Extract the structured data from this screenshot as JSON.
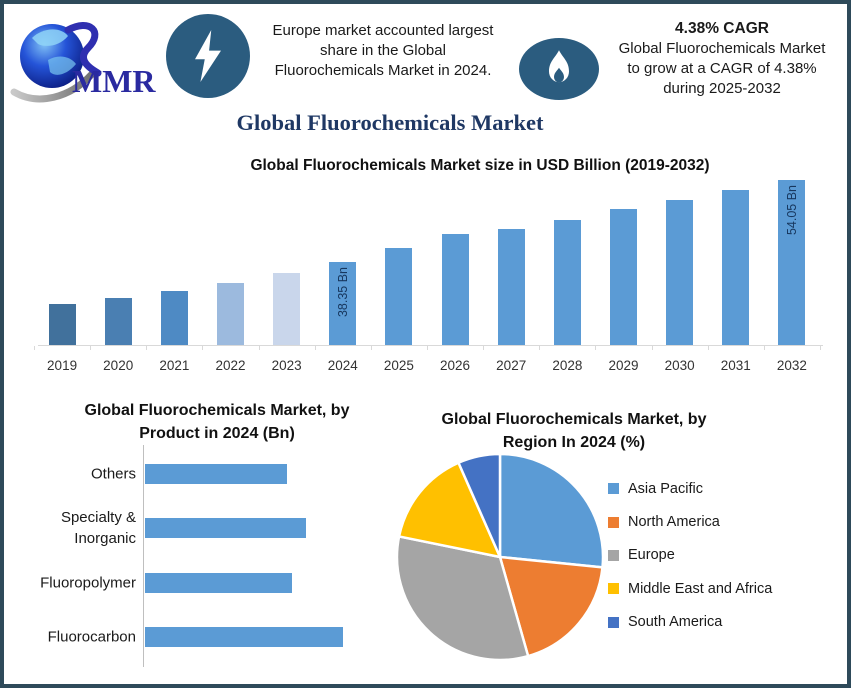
{
  "theme": {
    "frame_border": "#2E4A5A",
    "badge_blue": "#2B5C7F",
    "title_navy": "#1F3864",
    "logo_blue": "#2A2AA0",
    "bar_accent": "#5B9BD5",
    "bar_label_navy": "#17375E"
  },
  "header": {
    "logo": {
      "text": "MMR",
      "icon": "globe-icon"
    },
    "callout_europe": {
      "icon": "lightning-icon",
      "lines": [
        "Europe market accounted largest",
        "share in the Global",
        "Fluorochemicals Market in 2024."
      ]
    },
    "callout_cagr": {
      "icon": "flame-icon",
      "heading": "4.38% CAGR",
      "lines": [
        "Global Fluorochemicals Market",
        "to grow at a CAGR of 4.38%",
        "during 2025-2032"
      ]
    }
  },
  "page_title": "Global Fluorochemicals Market",
  "chart_data": [
    {
      "type": "bar",
      "title": "Global Fluorochemicals Market size in USD Billion (2019-2032)",
      "unit": "USD Billion",
      "categories": [
        "2019",
        "2020",
        "2021",
        "2022",
        "2023",
        "2024",
        "2025",
        "2026",
        "2027",
        "2028",
        "2029",
        "2030",
        "2031",
        "2032"
      ],
      "values": [
        30.2,
        31.4,
        32.7,
        34.3,
        36.2,
        38.35,
        40.9,
        43.6,
        44.6,
        46.4,
        48.4,
        50.3,
        52.1,
        54.05
      ],
      "data_labels": {
        "2024": "38.35 Bn",
        "2032": "54.05 Bn"
      },
      "bar_colors": [
        "#41719C",
        "#4A7FB2",
        "#4E8AC4",
        "#9CBADE",
        "#C9D6EB",
        "#5B9BD5",
        "#5B9BD5",
        "#5B9BD5",
        "#5B9BD5",
        "#5B9BD5",
        "#5B9BD5",
        "#5B9BD5",
        "#5B9BD5",
        "#5B9BD5"
      ],
      "ylim": [
        22.3,
        56.0
      ],
      "grid": false,
      "xlabel": "",
      "ylabel": ""
    },
    {
      "type": "bar",
      "orientation": "horizontal",
      "title_lines": [
        "Global Fluorochemicals Market, by",
        "Product in 2024 (Bn)"
      ],
      "categories": [
        "Others",
        "Specialty & Inorganic",
        "Fluoropolymer",
        "Fluorocarbon"
      ],
      "values": [
        8.4,
        9.5,
        8.7,
        11.7
      ],
      "bar_color": "#5B9BD5",
      "xlim": [
        0,
        12.5
      ],
      "grid": false
    },
    {
      "type": "pie",
      "title_lines": [
        "Global Fluorochemicals Market, by",
        "Region In 2024 (%)"
      ],
      "slices": [
        {
          "label": "Asia Pacific",
          "value": 26.6,
          "color": "#5B9BD5"
        },
        {
          "label": "North America",
          "value": 19.0,
          "color": "#ED7D31"
        },
        {
          "label": "Europe",
          "value": 32.6,
          "color": "#A5A5A5"
        },
        {
          "label": "Middle East and Africa",
          "value": 15.2,
          "color": "#FFC000"
        },
        {
          "label": "South America",
          "value": 6.6,
          "color": "#4472C4"
        }
      ],
      "start_angle_deg": 0,
      "legend_position": "right"
    }
  ]
}
